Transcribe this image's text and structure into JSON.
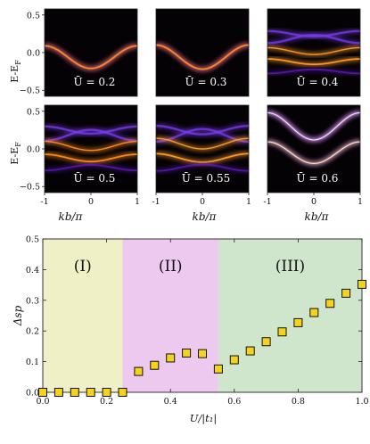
{
  "panels_row_label": "E-E",
  "panels_row_label_sub": "F",
  "panel_xlabel": "kb/π",
  "panel_yticks": [
    "0.5",
    "0.0",
    "−0.5"
  ],
  "panel_xticks": [
    "-1",
    "0",
    "1"
  ],
  "panels": [
    {
      "label": "Ū = 0.2",
      "kind": "single",
      "amp": 0.15,
      "shift": -0.06,
      "color": "#ff8a1e"
    },
    {
      "label": "Ū = 0.3",
      "kind": "single",
      "amp": 0.16,
      "shift": -0.06,
      "color": "#ff8a1e"
    },
    {
      "label": "Ū = 0.4",
      "kind": "split",
      "amp": 0.09,
      "shift": 0.0,
      "color": "#ff9b2a"
    },
    {
      "label": "Ū = 0.5",
      "kind": "split",
      "amp": 0.12,
      "shift": 0.02,
      "color": "#ff8a1e"
    },
    {
      "label": "Ū = 0.55",
      "kind": "split",
      "amp": 0.14,
      "shift": 0.05,
      "color": "#ff9b2a"
    },
    {
      "label": "Ū = 0.6",
      "kind": "gap",
      "amp": 0.18,
      "shift": 0.0,
      "color": "#ff8a1e"
    }
  ],
  "chart_data": {
    "type": "scatter",
    "xlabel": "U/|t₁|",
    "ylabel": "Δsp",
    "xlim": [
      0.0,
      1.0
    ],
    "ylim": [
      0.0,
      0.5
    ],
    "xticks": [
      "0.0",
      "0.2",
      "0.4",
      "0.6",
      "0.8",
      "1.0"
    ],
    "yticks": [
      "0.0",
      "0.1",
      "0.2",
      "0.3",
      "0.4",
      "0.5"
    ],
    "regions": [
      {
        "label": "(I)",
        "from": 0.0,
        "to": 0.25,
        "color": "#eff0c6"
      },
      {
        "label": "(II)",
        "from": 0.25,
        "to": 0.55,
        "color": "#edc9ef"
      },
      {
        "label": "(III)",
        "from": 0.55,
        "to": 1.0,
        "color": "#cfe5cc"
      }
    ],
    "marker_color": "#f5d31c",
    "x": [
      0.0,
      0.05,
      0.1,
      0.15,
      0.2,
      0.25,
      0.3,
      0.35,
      0.4,
      0.45,
      0.5,
      0.55,
      0.6,
      0.65,
      0.7,
      0.75,
      0.8,
      0.85,
      0.9,
      0.95,
      1.0
    ],
    "y": [
      0.0,
      0.0,
      0.0,
      0.0,
      0.0,
      0.0,
      0.068,
      0.088,
      0.112,
      0.128,
      0.126,
      0.076,
      0.106,
      0.135,
      0.165,
      0.197,
      0.227,
      0.26,
      0.29,
      0.323,
      0.352
    ]
  }
}
